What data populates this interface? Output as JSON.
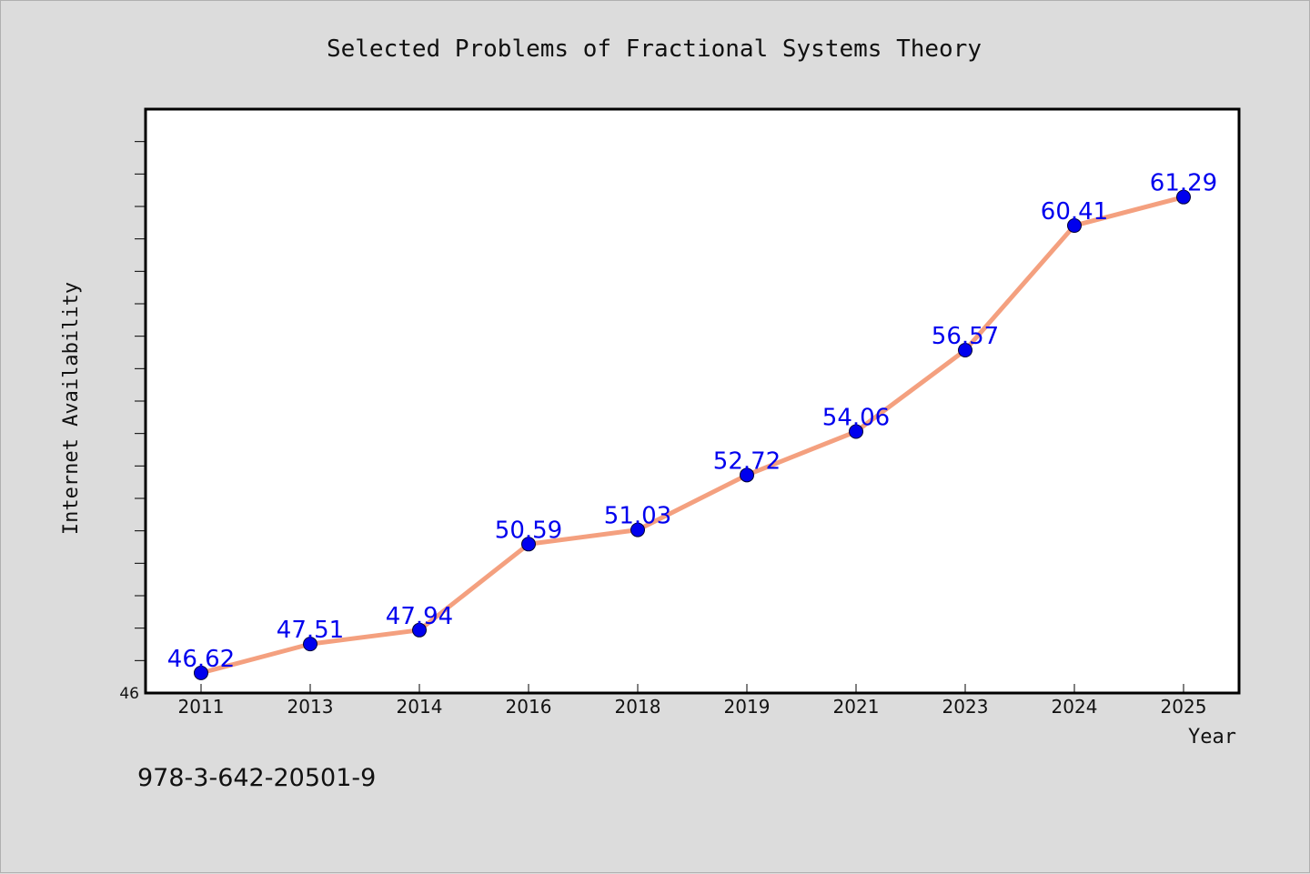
{
  "chart_data": {
    "type": "line",
    "title": "Selected Problems of Fractional Systems Theory",
    "xlabel": "Year",
    "ylabel": "Internet Availability",
    "categories": [
      "2011",
      "2013",
      "2014",
      "2016",
      "2018",
      "2019",
      "2021",
      "2023",
      "2024",
      "2025"
    ],
    "series": [
      {
        "values": [
          46.62,
          47.51,
          47.94,
          50.59,
          51.03,
          52.72,
          54.06,
          56.57,
          60.41,
          61.29
        ]
      }
    ],
    "data_labels": [
      "46.62",
      "47.51",
      "47.94",
      "50.59",
      "51.03",
      "52.72",
      "54.06",
      "56.57",
      "60.41",
      "61.29"
    ],
    "ylim": [
      46,
      64
    ],
    "y_tick_labels": [
      "46"
    ],
    "grid": false,
    "line_color": "#f4a07f",
    "marker_color": "#0000ee",
    "label_color": "#0000ee"
  },
  "footer": {
    "isbn": "978-3-642-20501-9"
  }
}
